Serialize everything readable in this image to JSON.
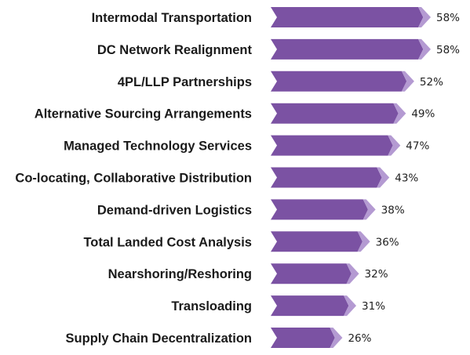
{
  "chart_data": {
    "type": "bar",
    "orientation": "horizontal",
    "categories": [
      "Intermodal Transportation",
      "DC Network Realignment",
      "4PL/LLP Partnerships",
      "Alternative Sourcing Arrangements",
      "Managed Technology Services",
      "Co-locating, Collaborative Distribution",
      "Demand-driven Logistics",
      "Total Landed Cost Analysis",
      "Nearshoring/Reshoring",
      "Transloading",
      "Supply Chain Decentralization"
    ],
    "values": [
      58,
      58,
      52,
      49,
      47,
      43,
      38,
      36,
      32,
      31,
      26
    ],
    "value_labels": [
      "58%",
      "58%",
      "52%",
      "49%",
      "47%",
      "43%",
      "38%",
      "36%",
      "32%",
      "31%",
      "26%"
    ],
    "unit": "%",
    "title": "",
    "xlabel": "",
    "ylabel": "",
    "xlim": [
      0,
      58
    ],
    "grid": false,
    "legend": "none",
    "colors": {
      "bar": "#7b52a3",
      "bar_tip": "#b49ad2",
      "label_text": "#1a1a1a",
      "value_text": "#222222"
    }
  }
}
